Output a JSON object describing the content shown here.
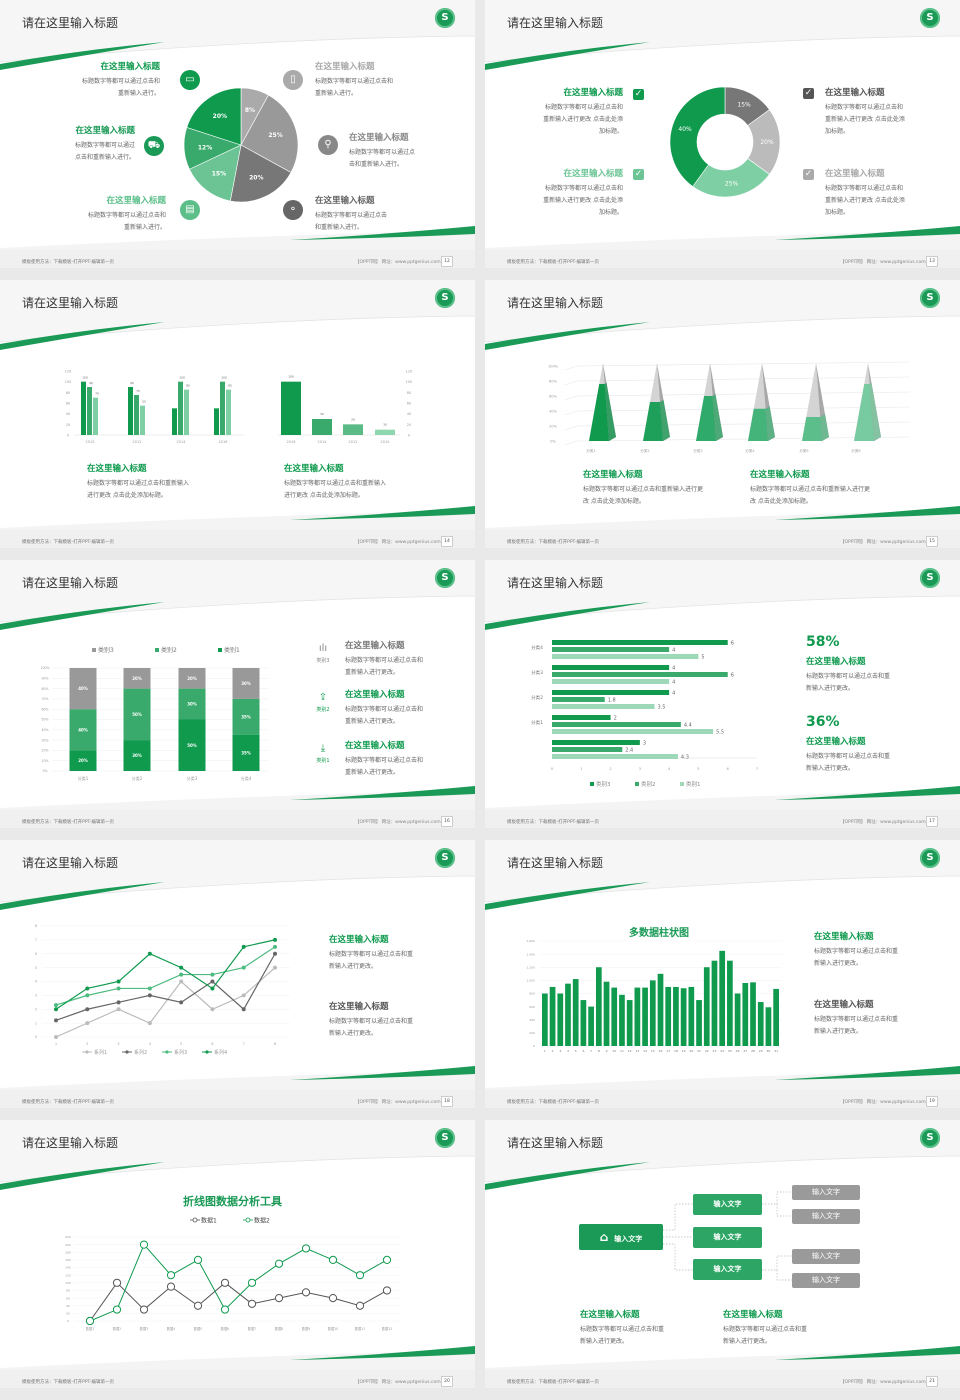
{
  "theme": {
    "green": "#0f9a4e",
    "mid_green": "#3aaa6c",
    "light_green": "#7fcfa4",
    "gray": "#999999"
  },
  "footer": {
    "left_text": "模板使用方法：下载模板-打开PPT-编辑第一页",
    "right_text": "【OPPT网】 网址：www.pptgenius.com",
    "logo_letter": "S"
  },
  "slides": [
    {
      "title": "请在这里输入标题",
      "page": "12",
      "items": [
        {
          "heading": "在这里输入标题",
          "color": "#0f9a4e",
          "icon": "monitor-icon",
          "lines": [
            "标题数字等都可以通过点击和",
            "重新输入进行。"
          ]
        },
        {
          "heading": "在这里输入标题",
          "color": "#1a9a56",
          "icon": "car-icon",
          "lines": [
            "标题数字等都可以通过",
            "点击和重新输入进行。"
          ]
        },
        {
          "heading": "在这里输入标题",
          "color": "#5cbf8a",
          "icon": "book-icon",
          "lines": [
            "标题数字等都可以通过点击和",
            "重新输入进行。"
          ]
        },
        {
          "heading": "在这里输入标题",
          "color": "#aaaaaa",
          "icon": "phone-icon",
          "lines": [
            "标题数字等都可以通过点击和",
            "重新输入进行。"
          ]
        },
        {
          "heading": "在这里输入标题",
          "color": "#888888",
          "icon": "binoculars-icon",
          "lines": [
            "标题数字等都可以通过点",
            "击和重新输入进行。"
          ]
        },
        {
          "heading": "在这里输入标题",
          "color": "#666666",
          "icon": "bicycle-icon",
          "lines": [
            "标题数字等都可以通过点击",
            "和重新输入进行。"
          ]
        }
      ]
    },
    {
      "title": "请在这里输入标题",
      "page": "13",
      "items": [
        {
          "heading": "在这里输入标题",
          "color": "#0f9a4e",
          "lines": [
            "标题数字等都可以通过点击和",
            "重新输入进行更改 点击此处添",
            "加标题。"
          ]
        },
        {
          "heading": "在这里输入标题",
          "color": "#6cc495",
          "lines": [
            "标题数字等都可以通过点击和",
            "重新输入进行更改 点击此处添",
            "加标题。"
          ]
        },
        {
          "heading": "在这里输入标题",
          "color": "#555555",
          "lines": [
            "标题数字等都可以通过点击和",
            "重新输入进行更改 点击此处添",
            "加标题。"
          ]
        },
        {
          "heading": "在这里输入标题",
          "color": "#aaaaaa",
          "lines": [
            "标题数字等都可以通过点击和",
            "重新输入进行更改 点击此处添",
            "加标题。"
          ]
        }
      ],
      "check_icon": "✓"
    },
    {
      "title": "请在这里输入标题",
      "page": "14",
      "items": [
        {
          "heading": "在这里输入标题",
          "color": "#0f9a4e",
          "lines": [
            "标题数字等都可以通过点击和重新输入",
            "进行更改 点击此处添加标题。"
          ]
        },
        {
          "heading": "在这里输入标题",
          "color": "#0f9a4e",
          "lines": [
            "标题数字等都可以通过点击和重新输入",
            "进行更改 点击此处添加标题。"
          ]
        }
      ]
    },
    {
      "title": "请在这里输入标题",
      "page": "15",
      "items": [
        {
          "heading": "在这里输入标题",
          "color": "#0f9a4e",
          "lines": [
            "标题数字等都可以通过点击和重新输入进行更",
            "改 点击此处添加标题。"
          ]
        },
        {
          "heading": "在这里输入标题",
          "color": "#0f9a4e",
          "lines": [
            "标题数字等都可以通过点击和重新输入进行更",
            "改 点击此处添加标题。"
          ]
        }
      ]
    },
    {
      "title": "请在这里输入标题",
      "page": "16",
      "items": [
        {
          "heading": "在这里输入标题",
          "color": "#777777",
          "label": "类别3",
          "icon": "bar-chart-icon",
          "glyph": "ılı",
          "lines": [
            "标题数字等都可以通过点击和",
            "重新输入进行更改。"
          ]
        },
        {
          "heading": "在这里输入标题",
          "color": "#0f9a4e",
          "label": "类别2",
          "icon": "upload-icon",
          "glyph": "⇪",
          "lines": [
            "标题数字等都可以通过点击和",
            "重新输入进行更改。"
          ]
        },
        {
          "heading": "在这里输入标题",
          "color": "#0f9a4e",
          "label": "类别1",
          "icon": "download-icon",
          "glyph": "⤓",
          "lines": [
            "标题数字等都可以通过点击和",
            "重新输入进行更改。"
          ]
        }
      ]
    },
    {
      "title": "请在这里输入标题",
      "page": "17",
      "items": [
        {
          "stat": "58%",
          "heading": "在这里输入标题",
          "color": "#0f9a4e",
          "lines": [
            "标题数字等都可以通过点击和重",
            "新输入进行更改。"
          ]
        },
        {
          "stat": "36%",
          "heading": "在这里输入标题",
          "color": "#0f9a4e",
          "lines": [
            "标题数字等都可以通过点击和重",
            "新输入进行更改。"
          ]
        }
      ]
    },
    {
      "title": "请在这里输入标题",
      "page": "18",
      "items": [
        {
          "heading": "在这里输入标题",
          "color": "#0f9a4e",
          "lines": [
            "标题数字等都可以通过点击和重",
            "新输入进行更改。"
          ]
        },
        {
          "heading": "在这里输入标题",
          "color": "#555555",
          "lines": [
            "标题数字等都可以通过点击和重",
            "新输入进行更改。"
          ]
        }
      ]
    },
    {
      "title": "请在这里输入标题",
      "page": "19",
      "items": [
        {
          "heading": "在这里输入标题",
          "color": "#0f9a4e",
          "lines": [
            "标题数字等都可以通过点击和重",
            "新输入进行更改。"
          ]
        },
        {
          "heading": "在这里输入标题",
          "color": "#555555",
          "lines": [
            "标题数字等都可以通过点击和重",
            "新输入进行更改。"
          ]
        }
      ]
    },
    {
      "title": "请在这里输入标题",
      "page": "20"
    },
    {
      "title": "请在这里输入标题",
      "page": "21",
      "diagram": {
        "root": "输入文字",
        "root_icon": "home-icon",
        "middle": [
          "输入文字",
          "输入文字",
          "输入文字"
        ],
        "leaves": [
          "输入文字",
          "输入文字",
          "输入文字",
          "输入文字"
        ]
      },
      "items": [
        {
          "heading": "在这里输入标题",
          "color": "#0f9a4e",
          "lines": [
            "标题数字等都可以通过点击和重",
            "新输入进行更改。"
          ]
        },
        {
          "heading": "在这里输入标题",
          "color": "#0f9a4e",
          "lines": [
            "标题数字等都可以通过点击和重",
            "新输入进行更改。"
          ]
        }
      ]
    }
  ],
  "chart_data": [
    {
      "type": "pie",
      "values": [
        8,
        25,
        20,
        15,
        12,
        20
      ],
      "labels": [
        "8%",
        "25%",
        "20%",
        "15%",
        "12%",
        "20%"
      ],
      "colors": [
        "#aaaaaa",
        "#999999",
        "#777777",
        "#6cc495",
        "#3aaa6c",
        "#0f9a4e"
      ]
    },
    {
      "type": "pie",
      "donut": true,
      "values": [
        15,
        20,
        25,
        40
      ],
      "labels": [
        "15%",
        "20%",
        "25%",
        "40%"
      ],
      "colors": [
        "#777777",
        "#bbbbbb",
        "#7fcfa4",
        "#0f9a4e"
      ]
    },
    {
      "type": "bar",
      "categories": [
        "2010",
        "2012",
        "2014",
        "2016"
      ],
      "series": [
        {
          "values": [
            100,
            90,
            50,
            50
          ],
          "data_labels": [
            "100",
            "90",
            "",
            ""
          ]
        },
        {
          "values": [
            90,
            75,
            100,
            100
          ],
          "data_labels": [
            "90",
            "75",
            "100",
            "100"
          ]
        },
        {
          "values": [
            70,
            55,
            85,
            85
          ],
          "data_labels": [
            "70",
            "55",
            "85",
            "85"
          ]
        }
      ],
      "colors": [
        "#0f9a4e",
        "#3aaa6c",
        "#7fcfa4"
      ],
      "ylim": [
        0,
        120
      ],
      "yticks": [
        "0",
        "20",
        "40",
        "60",
        "80",
        "100",
        "120"
      ],
      "grid": false
    },
    {
      "type": "bar",
      "categories": [
        "2016",
        "2014",
        "2012",
        "2010"
      ],
      "values": [
        100,
        30,
        20,
        10
      ],
      "data_labels": [
        "100",
        "30",
        "20",
        "10"
      ],
      "colors": [
        "#0f9a4e",
        "#3aaa6c",
        "#5bbb86",
        "#8ed6ae"
      ],
      "ylim": [
        0,
        120
      ],
      "yticks": [
        "0",
        "20",
        "40",
        "60",
        "80",
        "100",
        "120"
      ],
      "axis_side": "right"
    },
    {
      "type": "bar",
      "style": "3d-pyramid",
      "categories": [
        "分类1",
        "分类2",
        "分类3",
        "分类4",
        "分类5",
        "分类6"
      ],
      "values": [
        76,
        52,
        60,
        43,
        32,
        76
      ],
      "colors": [
        "#0f9a4e",
        "#1fa05a",
        "#30aa6a",
        "#44b47a",
        "#5bbe8b",
        "#78cba0"
      ],
      "ylim": [
        0,
        100
      ],
      "yticks": [
        "0%",
        "20%",
        "40%",
        "60%",
        "80%",
        "100%"
      ],
      "grid": true
    },
    {
      "type": "bar",
      "stacked": true,
      "categories": [
        "分类1",
        "分类2",
        "分类3",
        "分类4"
      ],
      "series": [
        {
          "name": "类别1",
          "values": [
            20,
            30,
            50,
            35
          ],
          "color": "#0f9a4e"
        },
        {
          "name": "类别2",
          "values": [
            40,
            50,
            30,
            35
          ],
          "color": "#3aaa6c"
        },
        {
          "name": "类别3",
          "values": [
            40,
            20,
            20,
            30
          ],
          "color": "#999999"
        }
      ],
      "legend_order": [
        "类别3",
        "类别2",
        "类别1"
      ],
      "legend": "top",
      "ylim": [
        0,
        100
      ],
      "yticks": [
        "0%",
        "10%",
        "20%",
        "30%",
        "40%",
        "50%",
        "60%",
        "70%",
        "80%",
        "90%",
        "100%"
      ],
      "grid": true
    },
    {
      "type": "bar",
      "orientation": "horizontal",
      "categories": [
        "分类4",
        "分类3",
        "分类2",
        "分类1",
        ""
      ],
      "series": [
        {
          "name": "类别3",
          "values": [
            6,
            4,
            4,
            2,
            3
          ],
          "color": "#0f9a4e"
        },
        {
          "name": "类别2",
          "values": [
            4,
            6,
            1.8,
            4.4,
            2.4
          ],
          "color": "#3aaa6c"
        },
        {
          "name": "类别1",
          "values": [
            5,
            4,
            3.5,
            5.5,
            4.3
          ],
          "color": "#9dd9b8"
        }
      ],
      "xlim": [
        0,
        7
      ],
      "xticks": [
        "0",
        "1",
        "2",
        "3",
        "4",
        "5",
        "6",
        "7"
      ],
      "legend": "bottom"
    },
    {
      "type": "line",
      "x": [
        "1",
        "2",
        "3",
        "4",
        "5",
        "6",
        "7",
        "8"
      ],
      "series": [
        {
          "name": "系列1",
          "values": [
            0,
            1,
            2,
            1,
            4,
            2,
            3,
            5
          ],
          "color": "#bbbbbb"
        },
        {
          "name": "系列2",
          "values": [
            1.2,
            2,
            2.5,
            3,
            2.5,
            4,
            2,
            6
          ],
          "color": "#666666"
        },
        {
          "name": "系列3",
          "values": [
            2.3,
            3,
            3.5,
            3.5,
            4.5,
            4.5,
            5,
            6.5
          ],
          "color": "#4cbb7f"
        },
        {
          "name": "系列4",
          "values": [
            2,
            3.5,
            4,
            6,
            5,
            3.5,
            6.5,
            7
          ],
          "color": "#0f9a4e"
        }
      ],
      "ylim": [
        0,
        8
      ],
      "yticks": [
        "0",
        "1",
        "2",
        "3",
        "4",
        "5",
        "6",
        "7",
        "8"
      ],
      "legend": "bottom"
    },
    {
      "type": "bar",
      "title": "多数据柱状图",
      "categories": [
        "1",
        "2",
        "3",
        "4",
        "5",
        "6",
        "7",
        "8",
        "9",
        "10",
        "11",
        "12",
        "13",
        "14",
        "15",
        "16",
        "17",
        "18",
        "19",
        "20",
        "21",
        "22",
        "23",
        "24",
        "25",
        "26",
        "27",
        "28",
        "29",
        "30",
        "31"
      ],
      "values": [
        800,
        900,
        800,
        950,
        1020,
        700,
        600,
        1200,
        980,
        890,
        780,
        700,
        890,
        890,
        1000,
        1100,
        900,
        900,
        880,
        900,
        700,
        1200,
        1300,
        1450,
        1300,
        800,
        960,
        970,
        670,
        590,
        870
      ],
      "color": "#0f9a4e",
      "ylim": [
        0,
        1600
      ],
      "yticks": [
        "0",
        "200",
        "400",
        "600",
        "800",
        "1,000",
        "1,200",
        "1,400",
        "1,600"
      ],
      "grid": true
    },
    {
      "type": "line",
      "title": "折线图数据分析工具",
      "x": [
        "数据1",
        "数据2",
        "数据3",
        "数据4",
        "数据5",
        "数据6",
        "数据7",
        "数据8",
        "数据9",
        "数据10",
        "数据11",
        "数据12"
      ],
      "series": [
        {
          "name": "数据1",
          "values": [
            0,
            100,
            30,
            90,
            40,
            100,
            45,
            60,
            75,
            60,
            40,
            80
          ],
          "color": "#555555"
        },
        {
          "name": "数据2",
          "values": [
            0,
            30,
            200,
            120,
            160,
            30,
            100,
            150,
            190,
            160,
            120,
            160
          ],
          "color": "#0f9a4e"
        }
      ],
      "ylim": [
        0,
        220
      ],
      "yticks": [
        "0",
        "20",
        "40",
        "60",
        "80",
        "100",
        "120",
        "140",
        "160",
        "180",
        "200",
        "220"
      ],
      "legend": "top"
    }
  ]
}
